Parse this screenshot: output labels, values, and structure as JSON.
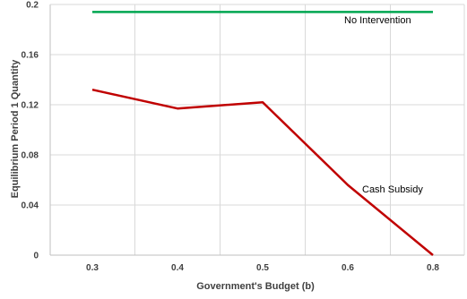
{
  "chart_data": {
    "type": "line",
    "title": "",
    "xlabel": "Government's Budget (b)",
    "ylabel": "Equilibrium Period 1 Quantity",
    "categories": [
      "0.3",
      "0.4",
      "0.5",
      "0.6",
      "0.8"
    ],
    "ylim": [
      0,
      0.2
    ],
    "yticks": [
      "0",
      "0.04",
      "0.08",
      "0.12",
      "0.16",
      "0.2"
    ],
    "grid": true,
    "legend": "none",
    "series": [
      {
        "name": "No Intervention",
        "color": "#00a651",
        "values": [
          0.194,
          0.194,
          0.194,
          0.194,
          0.194
        ]
      },
      {
        "name": "Cash Subsidy",
        "color": "#c00000",
        "values": [
          0.132,
          0.117,
          0.122,
          0.056,
          0.0
        ]
      }
    ]
  }
}
